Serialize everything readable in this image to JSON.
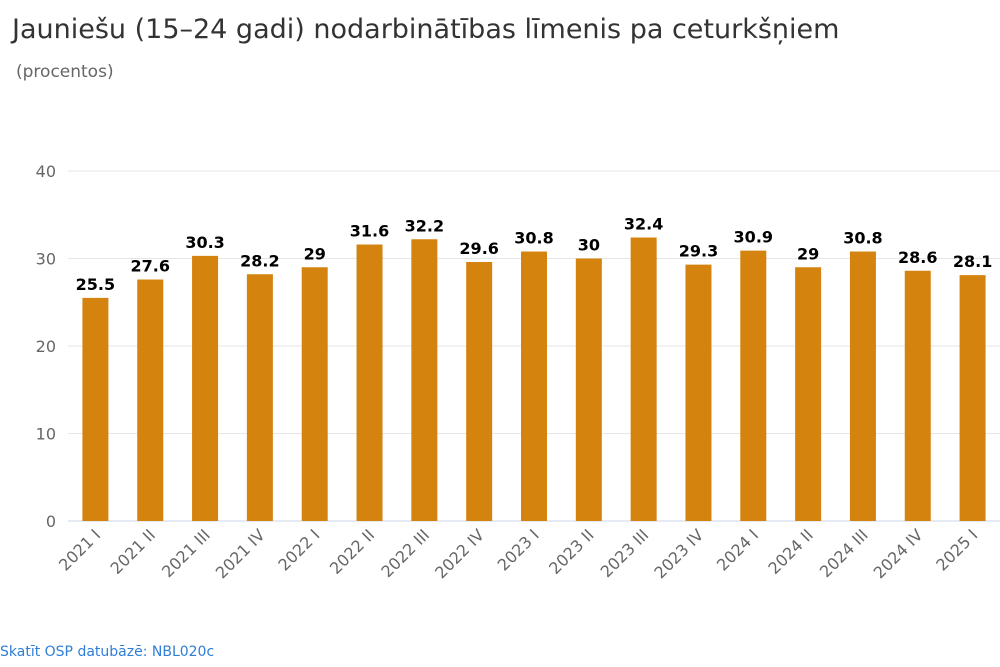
{
  "header": {
    "title": "Jauniešu (15–24 gadi) nodarbinātības līmenis pa ceturkšņiem",
    "subtitle": "(procentos)"
  },
  "footer": {
    "source_link": "Skatīt OSP datubāzē: NBL020c"
  },
  "colors": {
    "bar": "#d4830f",
    "grid": "#e6e6e6",
    "axis_text": "#666666",
    "label_text": "#000000"
  },
  "chart_data": {
    "type": "bar",
    "title": "Jauniešu (15–24 gadi) nodarbinātības līmenis pa ceturkšņiem",
    "subtitle": "(procentos)",
    "xlabel": "",
    "ylabel": "",
    "ylim": [
      0,
      40
    ],
    "yticks": [
      0,
      10,
      20,
      30,
      40
    ],
    "grid": true,
    "legend": "none",
    "categories": [
      "2021 I",
      "2021 II",
      "2021 III",
      "2021 IV",
      "2022 I",
      "2022 II",
      "2022 III",
      "2022 IV",
      "2023 I",
      "2023 II",
      "2023 III",
      "2023 IV",
      "2024 I",
      "2024 II",
      "2024 III",
      "2024 IV",
      "2025 I"
    ],
    "values": [
      25.5,
      27.6,
      30.3,
      28.2,
      29,
      31.6,
      32.2,
      29.6,
      30.8,
      30,
      32.4,
      29.3,
      30.9,
      29,
      30.8,
      28.6,
      28.1
    ],
    "data_labels": [
      "25.5",
      "27.6",
      "30.3",
      "28.2",
      "29",
      "31.6",
      "32.2",
      "29.6",
      "30.8",
      "30",
      "32.4",
      "29.3",
      "30.9",
      "29",
      "30.8",
      "28.6",
      "28.1"
    ]
  }
}
